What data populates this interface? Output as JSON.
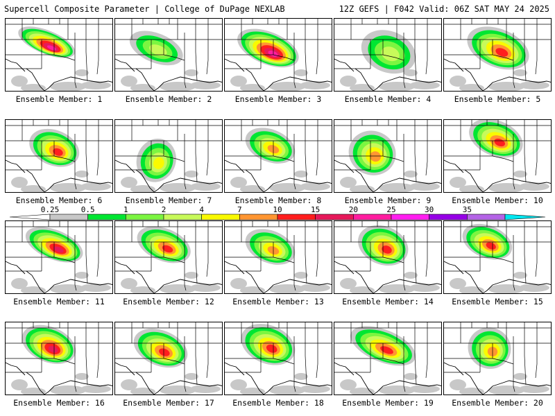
{
  "header": {
    "title": "Supercell Composite Parameter | College of DuPage NEXLAB",
    "run_info": "12Z GEFS | F042 Valid: 06Z SAT MAY 24 2025"
  },
  "members": [
    {
      "label": "Ensemble Member: 1",
      "peak": 22,
      "center": [
        0.38,
        0.32
      ],
      "extent": [
        0.28,
        0.16
      ]
    },
    {
      "label": "Ensemble Member: 2",
      "peak": 4,
      "center": [
        0.38,
        0.4
      ],
      "extent": [
        0.26,
        0.2
      ]
    },
    {
      "label": "Ensemble Member: 3",
      "peak": 22,
      "center": [
        0.4,
        0.4
      ],
      "extent": [
        0.3,
        0.22
      ]
    },
    {
      "label": "Ensemble Member: 4",
      "peak": 3,
      "center": [
        0.5,
        0.45
      ],
      "extent": [
        0.26,
        0.28
      ]
    },
    {
      "label": "Ensemble Member: 5",
      "peak": 12,
      "center": [
        0.5,
        0.4
      ],
      "extent": [
        0.3,
        0.26
      ]
    },
    {
      "label": "Ensemble Member: 6",
      "peak": 12,
      "center": [
        0.45,
        0.38
      ],
      "extent": [
        0.24,
        0.24
      ]
    },
    {
      "label": "Ensemble Member: 7",
      "peak": 5,
      "center": [
        0.38,
        0.55
      ],
      "extent": [
        0.18,
        0.3
      ]
    },
    {
      "label": "Ensemble Member: 8",
      "peak": 9,
      "center": [
        0.42,
        0.35
      ],
      "extent": [
        0.24,
        0.22
      ]
    },
    {
      "label": "Ensemble Member: 9",
      "peak": 8,
      "center": [
        0.35,
        0.45
      ],
      "extent": [
        0.22,
        0.3
      ]
    },
    {
      "label": "Ensemble Member: 10",
      "peak": 12,
      "center": [
        0.48,
        0.25
      ],
      "extent": [
        0.26,
        0.24
      ]
    },
    {
      "label": "Ensemble Member: 11",
      "peak": 16,
      "center": [
        0.45,
        0.32
      ],
      "extent": [
        0.28,
        0.2
      ]
    },
    {
      "label": "Ensemble Member: 12",
      "peak": 11,
      "center": [
        0.45,
        0.32
      ],
      "extent": [
        0.26,
        0.22
      ]
    },
    {
      "label": "Ensemble Member: 13",
      "peak": 8,
      "center": [
        0.42,
        0.35
      ],
      "extent": [
        0.24,
        0.22
      ]
    },
    {
      "label": "Ensemble Member: 14",
      "peak": 11,
      "center": [
        0.45,
        0.33
      ],
      "extent": [
        0.24,
        0.26
      ]
    },
    {
      "label": "Ensemble Member: 15",
      "peak": 12,
      "center": [
        0.4,
        0.28
      ],
      "extent": [
        0.24,
        0.22
      ]
    },
    {
      "label": "Ensemble Member: 16",
      "peak": 18,
      "center": [
        0.4,
        0.3
      ],
      "extent": [
        0.26,
        0.24
      ]
    },
    {
      "label": "Ensemble Member: 17",
      "peak": 11,
      "center": [
        0.42,
        0.35
      ],
      "extent": [
        0.26,
        0.24
      ]
    },
    {
      "label": "Ensemble Member: 18",
      "peak": 11,
      "center": [
        0.4,
        0.3
      ],
      "extent": [
        0.26,
        0.26
      ]
    },
    {
      "label": "Ensemble Member: 19",
      "peak": 12,
      "center": [
        0.45,
        0.32
      ],
      "extent": [
        0.32,
        0.22
      ]
    },
    {
      "label": "Ensemble Member: 20",
      "peak": 10,
      "center": [
        0.42,
        0.35
      ],
      "extent": [
        0.2,
        0.28
      ]
    }
  ],
  "colorbar": {
    "labels": [
      "0.25",
      "0.5",
      "1",
      "2",
      "4",
      "7",
      "10",
      "15",
      "20",
      "25",
      "30",
      "35"
    ],
    "colors": [
      "#ffffff",
      "#c8c8c8",
      "#00e632",
      "#7cf541",
      "#c8fa5a",
      "#fafa00",
      "#ff9632",
      "#ff1e1e",
      "#e6195a",
      "#ff1ea0",
      "#ff1ef0",
      "#9600e6",
      "#b464e6",
      "#00e6f0"
    ]
  }
}
